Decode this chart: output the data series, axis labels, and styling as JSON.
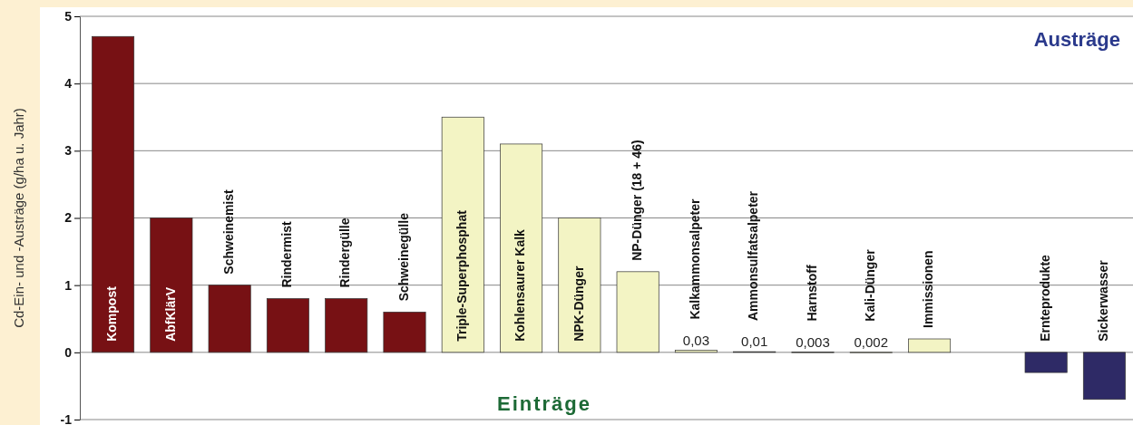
{
  "chart_data": {
    "type": "bar",
    "ylabel": "Cd-Ein- und -Austräge (g/ha u. Jahr)",
    "categories": [
      "Kompost",
      "AbfKlärV",
      "Schweinemist",
      "Rindermist",
      "Rindergülle",
      "Schweinegülle",
      "Triple-Superphosphat",
      "Kohlensaurer Kalk",
      "NPK-Dünger",
      "NP-Dünger (18 + 46)",
      "Kalkammonsalpeter",
      "Ammonsulfatsalpeter",
      "Harnstoff",
      "Kali-Dünger",
      "Immissionen",
      null,
      "Ernteprodukte",
      "Sickerwasser"
    ],
    "values": [
      4.7,
      2.0,
      1.0,
      0.8,
      0.8,
      0.6,
      3.5,
      3.1,
      2.0,
      1.2,
      0.03,
      0.01,
      0.003,
      0.002,
      0.2,
      null,
      -0.3,
      -0.7
    ],
    "colors": [
      "#771114",
      "#771114",
      "#771114",
      "#771114",
      "#771114",
      "#771114",
      "#f3f4c4",
      "#f3f4c4",
      "#f3f4c4",
      "#f3f4c4",
      "#f3f4c4",
      "#f3f4c4",
      "#f3f4c4",
      "#f3f4c4",
      "#f3f4c4",
      null,
      "#2e2a66",
      "#2e2a66"
    ],
    "value_labels": [
      null,
      null,
      null,
      null,
      null,
      null,
      null,
      null,
      null,
      null,
      "0,03",
      "0,01",
      "0,003",
      "0,002",
      null,
      null,
      null,
      null
    ],
    "ylim": [
      -1,
      5
    ],
    "yticks": [
      -1,
      0,
      1,
      2,
      3,
      4,
      5
    ],
    "grid": "y",
    "annotations": [
      "Austräge",
      "Einträge"
    ]
  }
}
